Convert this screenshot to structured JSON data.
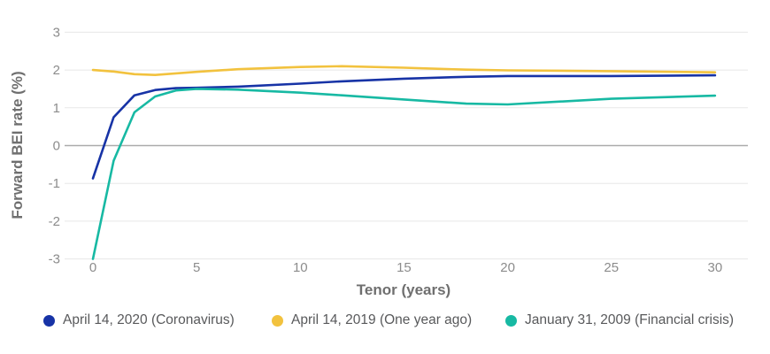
{
  "chart_data": {
    "type": "line",
    "title": "",
    "xlabel": "Tenor (years)",
    "ylabel": "Forward BEI rate (%)",
    "xlim": [
      0,
      30
    ],
    "ylim": [
      -3,
      3
    ],
    "x_ticks": [
      0,
      5,
      10,
      15,
      20,
      25,
      30
    ],
    "y_ticks": [
      3,
      2,
      1,
      0,
      -1,
      -2,
      -3
    ],
    "grid": "horizontal-only",
    "legend_position": "bottom",
    "background_color": "#FFFFFF",
    "grid_color": "#E7E7E7",
    "zero_line_color": "#ABABAB",
    "axis_tick_color": "#8C8C8C",
    "axis_title_color": "#6F6F6F",
    "legend_text_color": "#58595B",
    "x": [
      0,
      1,
      2,
      3,
      4,
      5,
      7,
      10,
      12,
      15,
      18,
      20,
      25,
      30
    ],
    "series": [
      {
        "name": "April 14, 2020 (Coronavirus)",
        "color": "#1733A6",
        "values": [
          -0.87,
          0.75,
          1.33,
          1.47,
          1.52,
          1.53,
          1.56,
          1.64,
          1.7,
          1.77,
          1.82,
          1.84,
          1.84,
          1.86
        ]
      },
      {
        "name": "April 14, 2019 (One year ago)",
        "color": "#F2C23E",
        "values": [
          2.0,
          1.96,
          1.89,
          1.87,
          1.91,
          1.95,
          2.02,
          2.08,
          2.1,
          2.06,
          2.01,
          1.99,
          1.97,
          1.94
        ]
      },
      {
        "name": "January 31, 2009 (Financial crisis)",
        "color": "#17B9A3",
        "values": [
          -3.0,
          -0.4,
          0.88,
          1.3,
          1.46,
          1.5,
          1.48,
          1.4,
          1.33,
          1.22,
          1.11,
          1.09,
          1.24,
          1.32
        ]
      }
    ]
  }
}
